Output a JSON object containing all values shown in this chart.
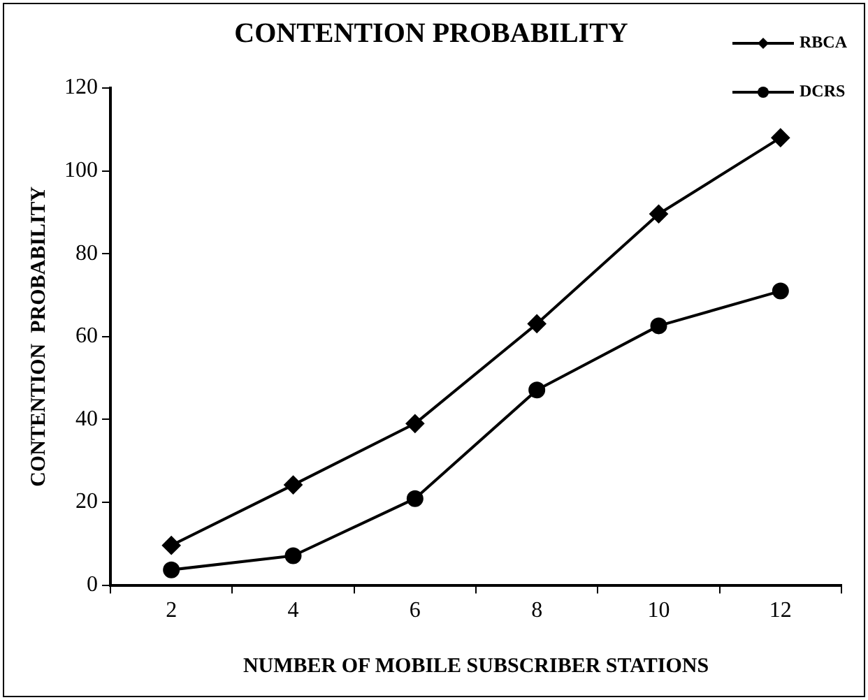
{
  "chart_data": {
    "type": "line",
    "title": "CONTENTION PROBABILITY",
    "xlabel": "NUMBER OF MOBILE SUBSCRIBER STATIONS",
    "ylabel": "CONTENTION  PROBABILITY",
    "categories": [
      "2",
      "4",
      "6",
      "8",
      "10",
      "12"
    ],
    "series": [
      {
        "name": "RBCA",
        "color": "#000000",
        "marker": "diamond",
        "values": [
          9.6,
          24.2,
          39,
          63.1,
          89.6,
          108
        ]
      },
      {
        "name": "DCRS",
        "color": "#000000",
        "marker": "circle",
        "values": [
          3.7,
          7.1,
          20.9,
          47.1,
          62.6,
          71
        ]
      }
    ],
    "ylim": [
      0,
      120
    ],
    "yticks": [
      0,
      20,
      40,
      60,
      80,
      100,
      120
    ],
    "grid": false,
    "legend": "top right",
    "line_style": "solid"
  }
}
